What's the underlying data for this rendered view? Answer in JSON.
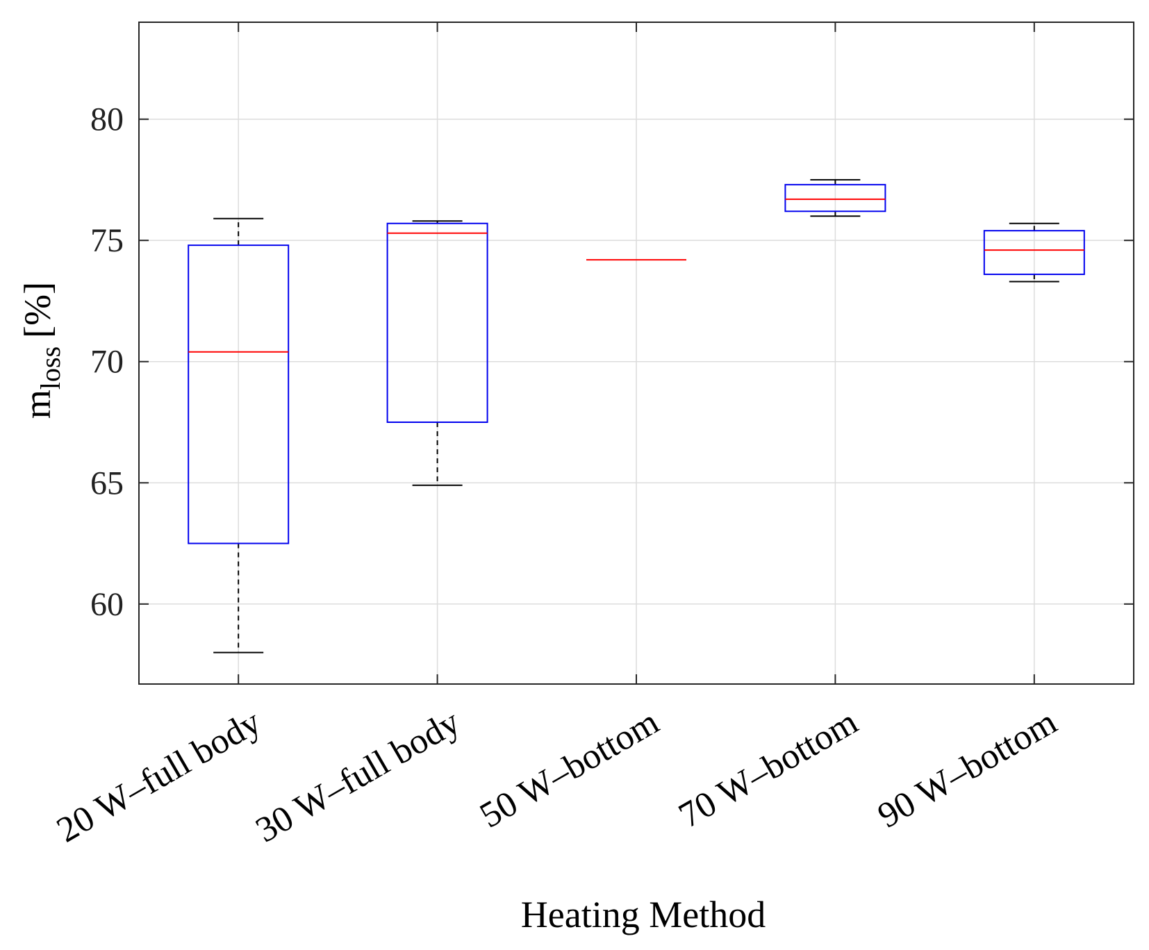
{
  "chart_data": {
    "type": "boxplot",
    "title": "",
    "xlabel": "Heating Method",
    "ylabel": {
      "main": "m",
      "subscript": "loss",
      "unit": "[%]"
    },
    "ylim": [
      56.7,
      84
    ],
    "yticks": [
      60,
      65,
      70,
      75,
      80
    ],
    "grid": true,
    "categories": [
      "20 W–full body",
      "30 W–full body",
      "50 W–bottom",
      "70 W–bottom",
      "90 W–bottom"
    ],
    "boxes": [
      {
        "name": "20 W–full body",
        "whisker_low": 58.0,
        "q1": 62.5,
        "median": 70.4,
        "q3": 74.8,
        "whisker_high": 75.9
      },
      {
        "name": "30 W–full body",
        "whisker_low": 64.9,
        "q1": 67.5,
        "median": 75.3,
        "q3": 75.7,
        "whisker_high": 75.8
      },
      {
        "name": "50 W–bottom",
        "whisker_low": 74.2,
        "q1": 74.2,
        "median": 74.2,
        "q3": 74.2,
        "whisker_high": 74.2
      },
      {
        "name": "70 W–bottom",
        "whisker_low": 76.0,
        "q1": 76.2,
        "median": 76.7,
        "q3": 77.3,
        "whisker_high": 77.5
      },
      {
        "name": "90 W–bottom",
        "whisker_low": 73.3,
        "q1": 73.6,
        "median": 74.6,
        "q3": 75.4,
        "whisker_high": 75.7
      }
    ],
    "colors": {
      "box": "#0000ee",
      "median": "#ff0000",
      "whisker": "#000000",
      "grid": "#dcdcdc",
      "axis": "#262626"
    }
  }
}
